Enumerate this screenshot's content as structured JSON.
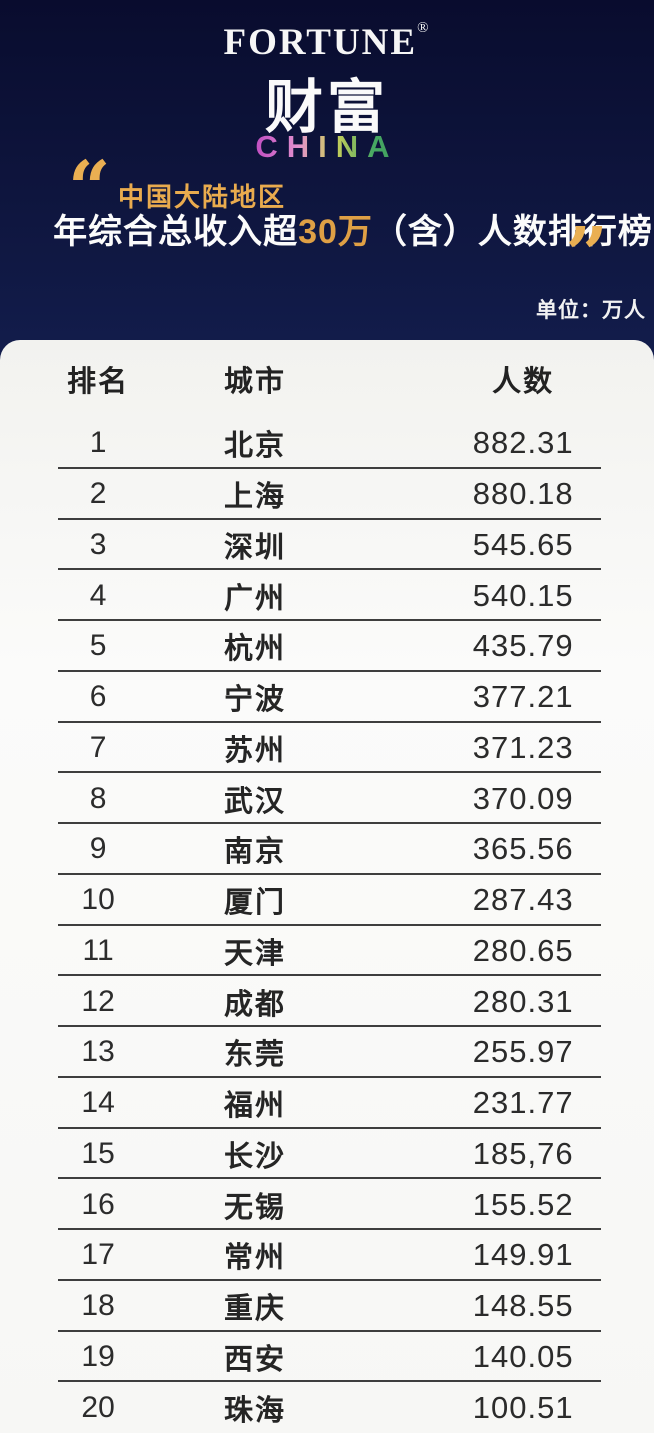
{
  "brand": {
    "name": "FORTUNE",
    "registered": "®",
    "name_cn": "财富",
    "region": "CHINA"
  },
  "header": {
    "open_quote": "“",
    "close_quote": "”",
    "tagline": "中国大陆地区",
    "title_prefix": "年综合总收入超",
    "title_highlight": "30万",
    "title_suffix": "（含）人数排行榜",
    "unit_label": "单位：万人"
  },
  "colors": {
    "background_top": "#090c2e",
    "background_bottom": "#2b4792",
    "accent_gold": "#e9ab4e",
    "card_background": "#f7f7f5",
    "row_text": "#2b2b2b",
    "divider": "#3e3e3e",
    "china_gradient": [
      "#c04ec2",
      "#e290cf",
      "#cdd05a",
      "#47a863"
    ]
  },
  "table": {
    "columns": [
      "排名",
      "城市",
      "人数"
    ],
    "rows": [
      {
        "rank": "1",
        "city": "北京",
        "value": "882.31"
      },
      {
        "rank": "2",
        "city": "上海",
        "value": "880.18"
      },
      {
        "rank": "3",
        "city": "深圳",
        "value": "545.65"
      },
      {
        "rank": "4",
        "city": "广州",
        "value": "540.15"
      },
      {
        "rank": "5",
        "city": "杭州",
        "value": "435.79"
      },
      {
        "rank": "6",
        "city": "宁波",
        "value": "377.21"
      },
      {
        "rank": "7",
        "city": "苏州",
        "value": "371.23"
      },
      {
        "rank": "8",
        "city": "武汉",
        "value": "370.09"
      },
      {
        "rank": "9",
        "city": "南京",
        "value": "365.56"
      },
      {
        "rank": "10",
        "city": "厦门",
        "value": "287.43"
      },
      {
        "rank": "11",
        "city": "天津",
        "value": "280.65"
      },
      {
        "rank": "12",
        "city": "成都",
        "value": "280.31"
      },
      {
        "rank": "13",
        "city": "东莞",
        "value": "255.97"
      },
      {
        "rank": "14",
        "city": "福州",
        "value": "231.77"
      },
      {
        "rank": "15",
        "city": "长沙",
        "value": "185,76"
      },
      {
        "rank": "16",
        "city": "无锡",
        "value": "155.52"
      },
      {
        "rank": "17",
        "city": "常州",
        "value": "149.91"
      },
      {
        "rank": "18",
        "city": "重庆",
        "value": "148.55"
      },
      {
        "rank": "19",
        "city": "西安",
        "value": "140.05"
      },
      {
        "rank": "20",
        "city": "珠海",
        "value": "100.51"
      }
    ]
  },
  "chart_data": {
    "type": "table",
    "title": "中国大陆地区 年综合总收入超30万（含）人数排行榜",
    "source_brand": "FORTUNE 财富 CHINA",
    "unit": "万人",
    "columns": [
      "排名",
      "城市",
      "人数"
    ],
    "categories": [
      "北京",
      "上海",
      "深圳",
      "广州",
      "杭州",
      "宁波",
      "苏州",
      "武汉",
      "南京",
      "厦门",
      "天津",
      "成都",
      "东莞",
      "福州",
      "长沙",
      "无锡",
      "常州",
      "重庆",
      "西安",
      "珠海"
    ],
    "values": [
      882.31,
      880.18,
      545.65,
      540.15,
      435.79,
      377.21,
      371.23,
      370.09,
      365.56,
      287.43,
      280.65,
      280.31,
      255.97,
      231.77,
      185.76,
      155.52,
      149.91,
      148.55,
      140.05,
      100.51
    ]
  }
}
